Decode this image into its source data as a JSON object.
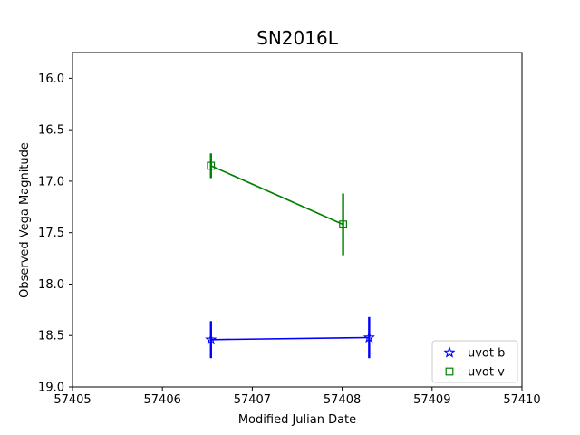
{
  "chart_data": {
    "type": "line",
    "title": "SN2016L",
    "xlabel": "Modified Julian Date",
    "ylabel": "Observed Vega Magnitude",
    "xlim": [
      57405,
      57410
    ],
    "ylim": [
      19.0,
      15.75
    ],
    "y_inverted": true,
    "xticks": [
      "57405",
      "57406",
      "57407",
      "57408",
      "57409",
      "57410"
    ],
    "yticks": [
      "16.0",
      "16.5",
      "17.0",
      "17.5",
      "18.0",
      "18.5",
      "19.0"
    ],
    "grid": false,
    "legend_position": "lower-right",
    "series": [
      {
        "name": "uvot b",
        "color": "#0000ff",
        "marker": "star",
        "x": [
          57406.54,
          57408.3
        ],
        "y": [
          18.54,
          18.52
        ],
        "yerr": [
          0.18,
          0.2
        ]
      },
      {
        "name": "uvot v",
        "color": "#008000",
        "marker": "square",
        "x": [
          57406.54,
          57408.01
        ],
        "y": [
          16.85,
          17.42
        ],
        "yerr": [
          0.12,
          0.3
        ]
      }
    ]
  }
}
